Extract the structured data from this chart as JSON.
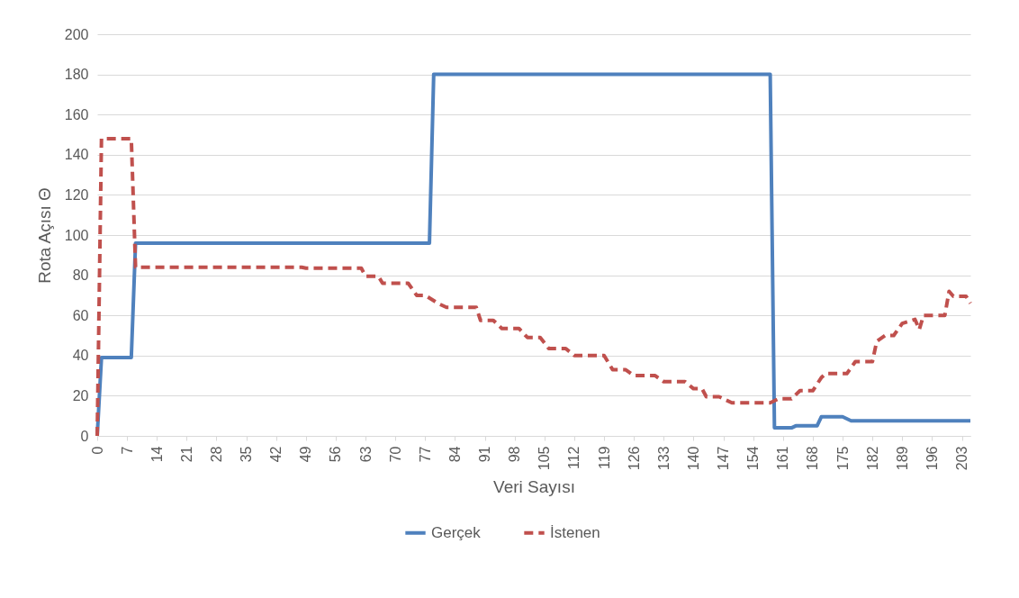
{
  "chart_data": {
    "type": "line",
    "xlabel": "Veri Sayısı",
    "ylabel": "Rota Açısı Θ",
    "xlim": [
      0,
      205
    ],
    "xticks": [
      0,
      7,
      14,
      21,
      28,
      35,
      42,
      49,
      56,
      63,
      70,
      77,
      84,
      91,
      98,
      105,
      112,
      119,
      126,
      133,
      140,
      147,
      154,
      161,
      168,
      175,
      182,
      189,
      196,
      203
    ],
    "ylim": [
      0,
      200
    ],
    "yticks": [
      0,
      20,
      40,
      60,
      80,
      100,
      120,
      140,
      160,
      180,
      200
    ],
    "grid": "y",
    "legend": "bottom",
    "series": [
      {
        "name": "Gerçek",
        "color": "#4f81bd",
        "line_style": "solid",
        "x": [
          0,
          1,
          8,
          9,
          78,
          79,
          158,
          159,
          163,
          164,
          169,
          170,
          175,
          177,
          205
        ],
        "values": [
          0,
          39,
          39,
          96,
          96,
          180,
          180,
          4,
          4,
          5,
          5,
          9.5,
          9.5,
          7.5,
          7.5
        ]
      },
      {
        "name": "İstenen",
        "color": "#c0504d",
        "line_style": "dashed",
        "x": [
          0,
          1,
          8,
          9,
          48,
          49,
          62,
          63,
          66,
          67,
          73,
          75,
          77,
          80,
          82,
          89,
          90,
          93,
          95,
          99,
          101,
          104,
          106,
          110,
          112,
          119,
          121,
          124,
          126,
          131,
          133,
          138,
          140,
          142,
          143,
          146,
          149,
          158,
          160,
          163,
          165,
          168,
          170,
          171,
          176,
          178,
          182,
          183,
          185,
          187,
          189,
          192,
          193,
          194,
          199,
          200,
          201,
          204,
          205
        ],
        "values": [
          0,
          148,
          148,
          84,
          84,
          83.5,
          83.5,
          79.5,
          79.5,
          76,
          76,
          70,
          70,
          66,
          64,
          64,
          57.5,
          57.5,
          53.5,
          53.5,
          49,
          49,
          43.5,
          43.5,
          40,
          40,
          33,
          33,
          30,
          30,
          27,
          27,
          23.5,
          23.5,
          19.5,
          19.5,
          16.5,
          16.5,
          18.5,
          18.5,
          22.5,
          22.5,
          29,
          31,
          31,
          37,
          37,
          47,
          50,
          50,
          56,
          58,
          53,
          60,
          60,
          72,
          69.5,
          69.5,
          66
        ]
      }
    ]
  }
}
